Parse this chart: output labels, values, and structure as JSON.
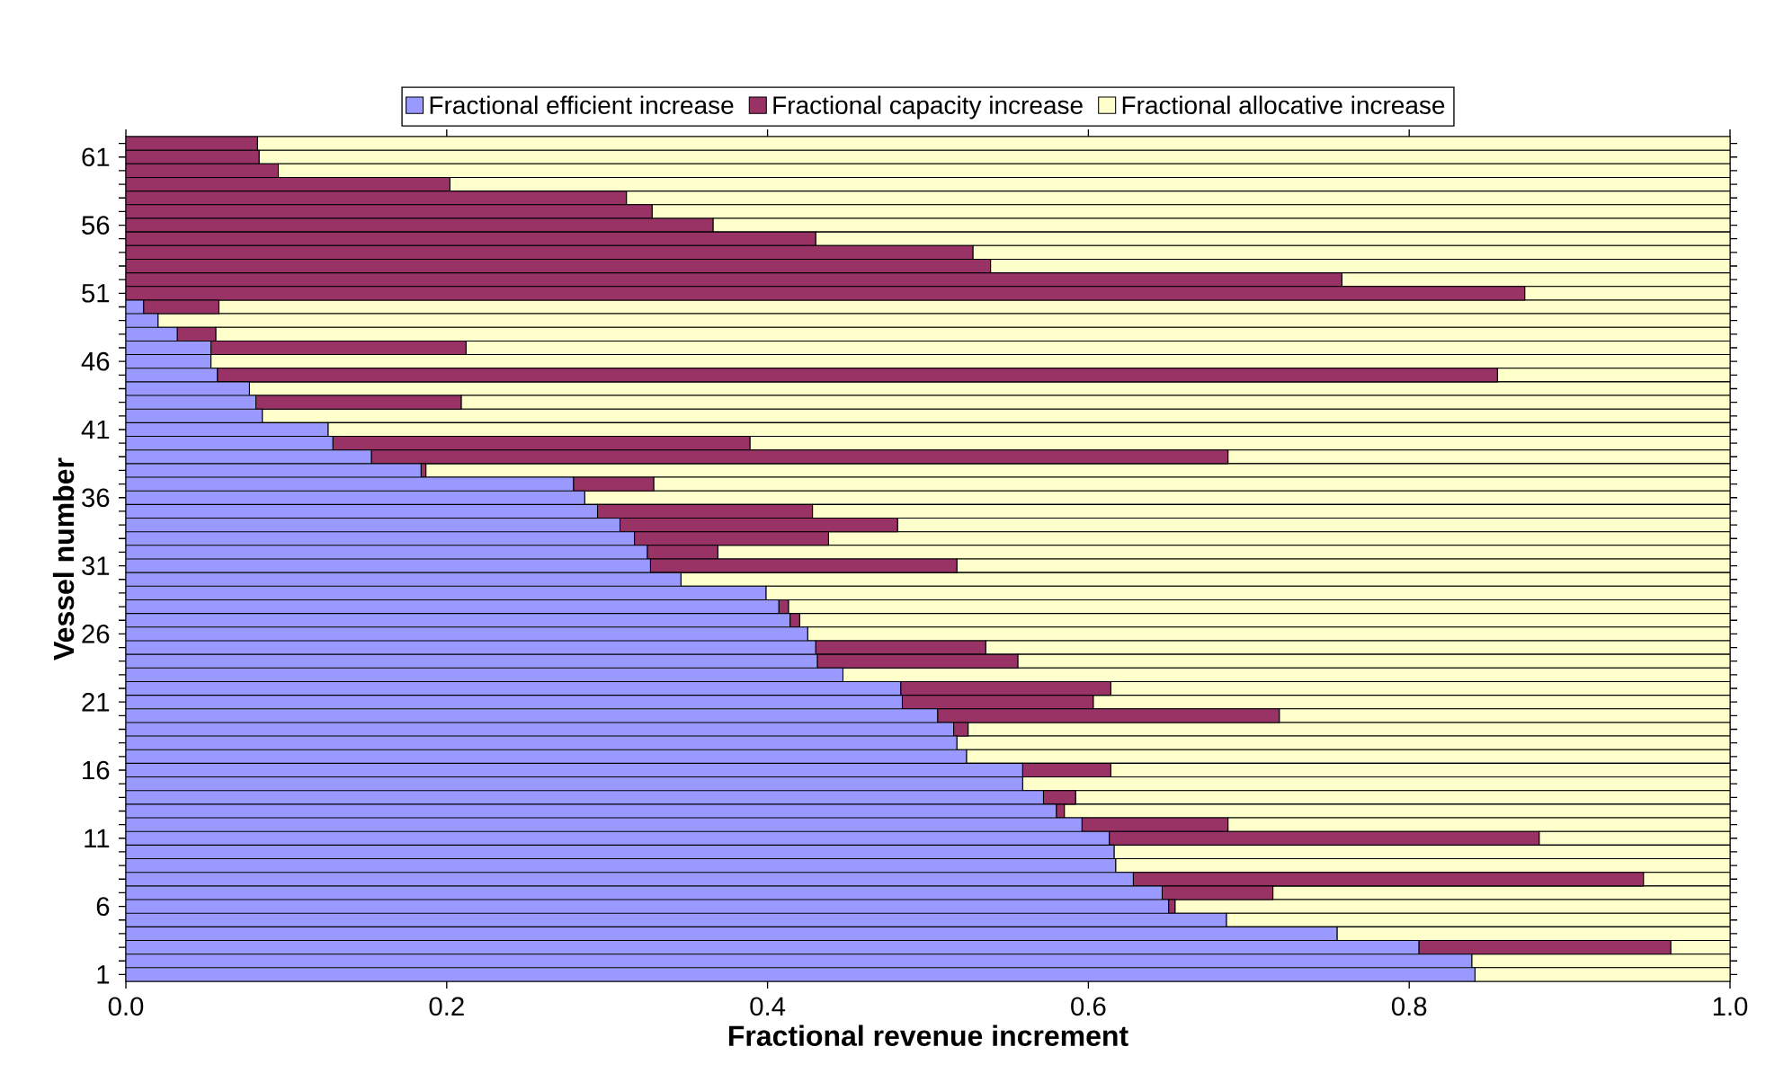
{
  "chart_data": {
    "type": "bar",
    "orientation": "horizontal",
    "stacked": true,
    "xlabel": "Fractional revenue increment",
    "ylabel": "Vessel number",
    "categories": [
      null,
      "61",
      null,
      null,
      null,
      null,
      "56",
      null,
      null,
      null,
      null,
      "51",
      null,
      null,
      null,
      null,
      "46",
      null,
      null,
      null,
      null,
      "41",
      null,
      null,
      null,
      null,
      "36",
      null,
      null,
      null,
      null,
      "31",
      null,
      null,
      null,
      null,
      "26",
      null,
      null,
      null,
      null,
      "21",
      null,
      null,
      null,
      null,
      "16",
      null,
      null,
      null,
      null,
      "11",
      null,
      null,
      null,
      null,
      "6",
      null,
      null,
      null,
      null,
      "1"
    ],
    "series": [
      {
        "name": "Fractional efficient increase",
        "color": "#9999ff",
        "values": [
          0,
          0,
          0,
          0,
          0,
          0,
          0,
          0,
          0,
          0,
          0,
          0,
          0.011,
          0.02,
          0.032,
          0.053,
          0.053,
          0.057,
          0.077,
          0.081,
          0.085,
          0.126,
          0.129,
          0.153,
          0.184,
          0.279,
          0.286,
          0.294,
          0.308,
          0.317,
          0.325,
          0.327,
          0.346,
          0.399,
          0.407,
          0.414,
          0.425,
          0.43,
          0.431,
          0.447,
          0.483,
          0.484,
          0.506,
          0.516,
          0.518,
          0.524,
          0.559,
          0.559,
          0.572,
          0.58,
          0.596,
          0.613,
          0.616,
          0.617,
          0.628,
          0.646,
          0.65,
          0.686,
          0.755,
          0.806,
          0.839,
          0.841
        ]
      },
      {
        "name": "Fractional capacity increase",
        "color": "#993366",
        "values": [
          0.082,
          0.083,
          0.095,
          0.202,
          0.312,
          0.328,
          0.366,
          0.43,
          0.528,
          0.539,
          0.758,
          0.872,
          0.047,
          0,
          0.024,
          0.159,
          0,
          0.798,
          0,
          0.128,
          0,
          0,
          0.26,
          0.534,
          0.003,
          0.05,
          0,
          0.134,
          0.173,
          0.121,
          0.044,
          0.191,
          0,
          0,
          0.006,
          0.006,
          0,
          0.106,
          0.125,
          0,
          0.131,
          0.119,
          0.213,
          0.009,
          0,
          0,
          0.055,
          0,
          0.02,
          0.005,
          0.091,
          0.268,
          0,
          0,
          0.318,
          0.069,
          0.004,
          0,
          0,
          0.157,
          0,
          0
        ]
      },
      {
        "name": "Fractional allocative increase",
        "color": "#ffffcc",
        "values": [
          0.918,
          0.917,
          0.905,
          0.798,
          0.688,
          0.672,
          0.634,
          0.57,
          0.472,
          0.461,
          0.242,
          0.128,
          0.942,
          0.98,
          0.944,
          0.788,
          0.947,
          0.145,
          0.923,
          0.791,
          0.915,
          0.874,
          0.611,
          0.313,
          0.813,
          0.671,
          0.714,
          0.572,
          0.519,
          0.562,
          0.631,
          0.482,
          0.654,
          0.601,
          0.587,
          0.58,
          0.575,
          0.464,
          0.444,
          0.553,
          0.386,
          0.397,
          0.281,
          0.475,
          0.482,
          0.476,
          0.386,
          0.441,
          0.408,
          0.415,
          0.313,
          0.119,
          0.384,
          0.383,
          0.054,
          0.285,
          0.346,
          0.314,
          0.245,
          0.037,
          0.161,
          0.159
        ]
      }
    ],
    "xlim": [
      0,
      1
    ],
    "xticks": [
      {
        "value": 0,
        "label": "0.0"
      },
      {
        "value": 0.2,
        "label": "0.2"
      },
      {
        "value": 0.4,
        "label": "0.4"
      },
      {
        "value": 0.6,
        "label": "0.6"
      },
      {
        "value": 0.8,
        "label": "0.8"
      },
      {
        "value": 1,
        "label": "1.0"
      }
    ],
    "legend": "top"
  }
}
